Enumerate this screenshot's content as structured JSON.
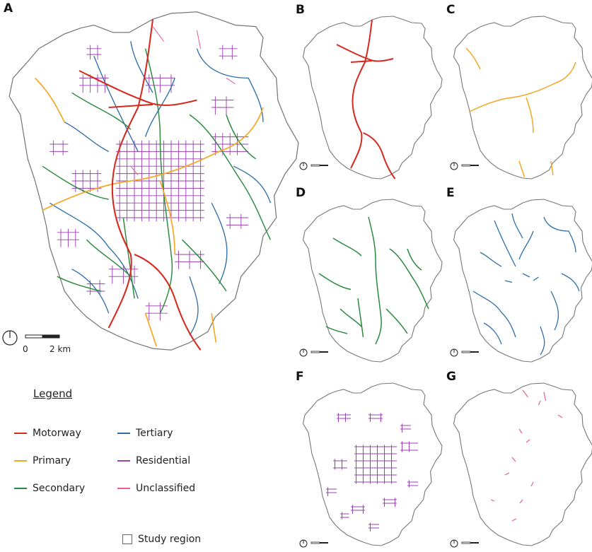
{
  "panels": {
    "A": "A",
    "B": "B",
    "C": "C",
    "D": "D",
    "E": "E",
    "F": "F",
    "G": "G"
  },
  "scale": {
    "zero": "0",
    "distance": "2 km"
  },
  "legend": {
    "title": "Legend",
    "items": [
      {
        "label": "Motorway",
        "color": "#d42a20"
      },
      {
        "label": "Primary",
        "color": "#f5a623"
      },
      {
        "label": "Secondary",
        "color": "#2b8a3e"
      },
      {
        "label": "Tertiary",
        "color": "#2f6fa8"
      },
      {
        "label": "Residential",
        "color": "#9b3fb5"
      },
      {
        "label": "Unclassified",
        "color": "#e85d9a"
      }
    ],
    "region_label": "Study region",
    "region_color": "#666666"
  }
}
